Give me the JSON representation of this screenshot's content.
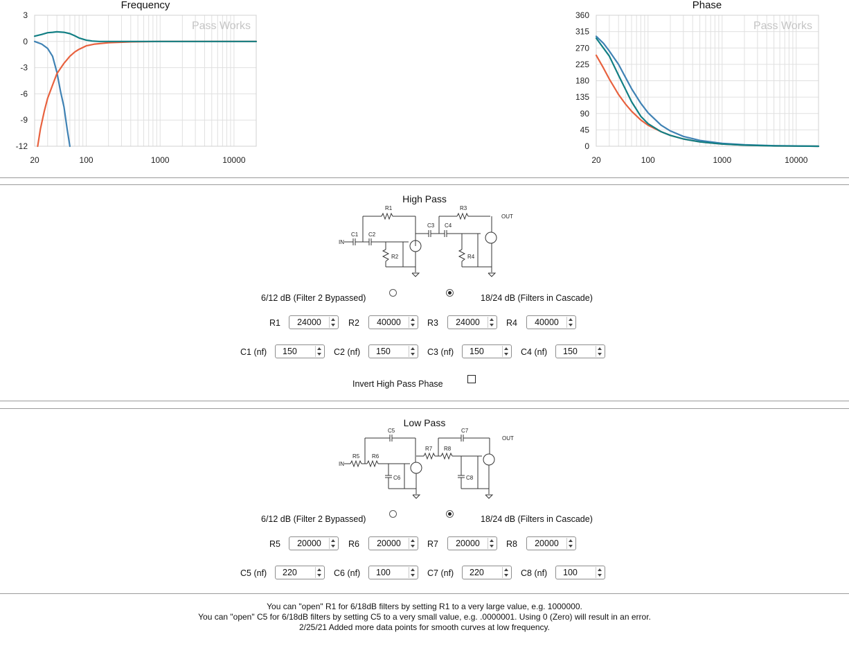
{
  "chart_data": [
    {
      "type": "line",
      "title": "Frequency",
      "watermark": "Pass Works",
      "xscale": "log",
      "xlim": [
        20,
        20000
      ],
      "ylim": [
        -12,
        3
      ],
      "xticks": [
        20,
        100,
        1000,
        10000
      ],
      "yticks": [
        3,
        0,
        -3,
        -6,
        -9,
        -12
      ],
      "grid": true,
      "series": [
        {
          "color": "#3f82b4",
          "x": [
            20,
            25,
            30,
            35,
            40,
            45,
            50,
            55,
            60
          ],
          "y": [
            0,
            -0.3,
            -0.8,
            -1.7,
            -3.5,
            -5.8,
            -7.5,
            -10,
            -12
          ]
        },
        {
          "color": "#e8613e",
          "x": [
            22,
            24,
            27,
            30,
            35,
            40,
            50,
            60,
            70,
            80,
            100,
            130,
            200,
            400,
            1000,
            20000
          ],
          "y": [
            -12,
            -10,
            -8,
            -6.5,
            -5,
            -3.7,
            -2.5,
            -1.7,
            -1.2,
            -0.9,
            -0.5,
            -0.3,
            -0.15,
            -0.05,
            0,
            0
          ]
        },
        {
          "color": "#127f84",
          "x": [
            20,
            25,
            30,
            35,
            40,
            50,
            60,
            70,
            80,
            100,
            120,
            150,
            200,
            400,
            1000,
            20000
          ],
          "y": [
            0.6,
            0.8,
            1,
            1.05,
            1.1,
            1.05,
            0.9,
            0.65,
            0.4,
            0.15,
            0.05,
            0,
            0,
            0,
            0,
            0
          ]
        }
      ]
    },
    {
      "type": "line",
      "title": "Phase",
      "watermark": "Pass Works",
      "xscale": "log",
      "xlim": [
        20,
        20000
      ],
      "ylim": [
        0,
        360
      ],
      "xticks": [
        20,
        100,
        1000,
        10000
      ],
      "yticks": [
        360,
        315,
        270,
        225,
        180,
        135,
        90,
        45,
        0
      ],
      "grid": true,
      "series": [
        {
          "color": "#e8613e",
          "x": [
            20,
            25,
            30,
            40,
            50,
            60,
            80,
            100,
            150,
            200,
            300,
            500,
            1000,
            2000,
            5000,
            20000
          ],
          "y": [
            250,
            215,
            185,
            142,
            115,
            96,
            72,
            58,
            40,
            30,
            20,
            12,
            6,
            3,
            1,
            0
          ]
        },
        {
          "color": "#3f82b4",
          "x": [
            20,
            25,
            30,
            40,
            50,
            60,
            80,
            100,
            150,
            200,
            300,
            500,
            1000,
            2000,
            5000,
            20000
          ],
          "y": [
            302,
            283,
            262,
            225,
            188,
            158,
            118,
            92,
            58,
            42,
            27,
            16,
            8,
            4,
            1.5,
            0
          ]
        },
        {
          "color": "#127f84",
          "x": [
            20,
            25,
            30,
            40,
            50,
            60,
            80,
            100,
            150,
            200,
            300,
            500,
            1000,
            2000,
            5000,
            20000
          ],
          "y": [
            297,
            270,
            248,
            195,
            155,
            122,
            82,
            62,
            40,
            30,
            20,
            12,
            6,
            3,
            1,
            0
          ]
        }
      ]
    }
  ],
  "high_pass": {
    "title": "High Pass",
    "schematic": {
      "r1": "R1",
      "r2": "R2",
      "r3": "R3",
      "r4": "R4",
      "c1": "C1",
      "c2": "C2",
      "c3": "C3",
      "c4": "C4",
      "in": "IN",
      "out": "OUT"
    },
    "mode_bypassed_label": "6/12 dB (Filter 2 Bypassed)",
    "mode_cascade_label": "18/24 dB (Filters in Cascade)",
    "mode_selected": "cascade",
    "resistors": [
      {
        "label": "R1",
        "value": "24000"
      },
      {
        "label": "R2",
        "value": "40000"
      },
      {
        "label": "R3",
        "value": "24000"
      },
      {
        "label": "R4",
        "value": "40000"
      }
    ],
    "capacitors": [
      {
        "label": "C1 (nf)",
        "value": "150"
      },
      {
        "label": "C2 (nf)",
        "value": "150"
      },
      {
        "label": "C3 (nf)",
        "value": "150"
      },
      {
        "label": "C4 (nf)",
        "value": "150"
      }
    ],
    "invert_label": "Invert High Pass Phase",
    "invert_checked": false
  },
  "low_pass": {
    "title": "Low Pass",
    "schematic": {
      "r5": "R5",
      "r6": "R6",
      "r7": "R7",
      "r8": "R8",
      "c5": "C5",
      "c6": "C6",
      "c7": "C7",
      "c8": "C8",
      "in": "IN",
      "out": "OUT"
    },
    "mode_bypassed_label": "6/12 dB (Filter 2 Bypassed)",
    "mode_cascade_label": "18/24 dB (Filters in Cascade)",
    "mode_selected": "cascade",
    "resistors": [
      {
        "label": "R5",
        "value": "20000"
      },
      {
        "label": "R6",
        "value": "20000"
      },
      {
        "label": "R7",
        "value": "20000"
      },
      {
        "label": "R8",
        "value": "20000"
      }
    ],
    "capacitors": [
      {
        "label": "C5 (nf)",
        "value": "220"
      },
      {
        "label": "C6 (nf)",
        "value": "100"
      },
      {
        "label": "C7 (nf)",
        "value": "220"
      },
      {
        "label": "C8 (nf)",
        "value": "100"
      }
    ]
  },
  "notes": [
    "You can \"open\" R1 for 6/18dB filters by setting R1 to a very large value, e.g. 1000000.",
    "You can \"open\" C5 for 6/18dB filters by setting C5 to a very small value, e.g. .0000001. Using 0 (Zero) will result in an error.",
    "2/25/21 Added more data points for smooth curves at low frequency."
  ]
}
